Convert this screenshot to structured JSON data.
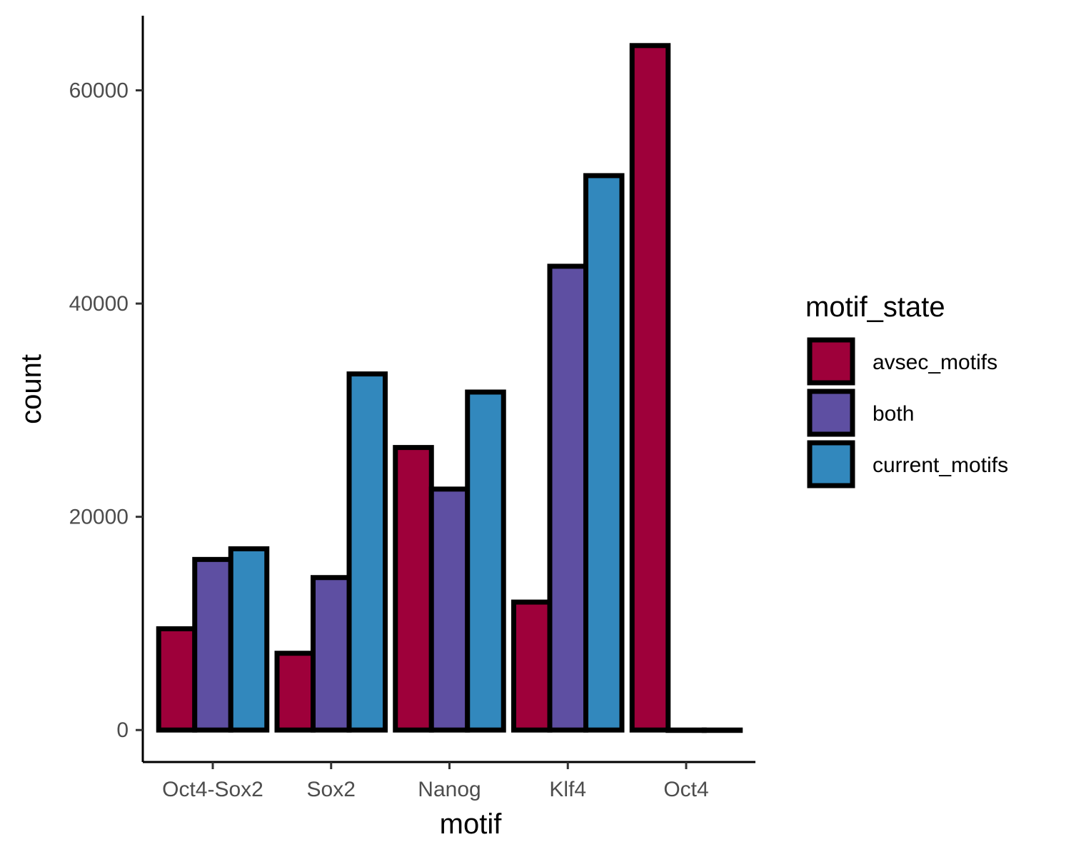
{
  "chart_data": {
    "type": "bar",
    "xlabel": "motif",
    "ylabel": "count",
    "categories": [
      "Oct4-Sox2",
      "Sox2",
      "Nanog",
      "Klf4",
      "Oct4"
    ],
    "series": [
      {
        "name": "avsec_motifs",
        "color": "#9E003A",
        "values": [
          9500,
          7200,
          26500,
          12000,
          64200
        ]
      },
      {
        "name": "both",
        "color": "#5E4FA2",
        "values": [
          16000,
          14300,
          22600,
          43500,
          0
        ]
      },
      {
        "name": "current_motifs",
        "color": "#3288BD",
        "values": [
          17000,
          33400,
          31700,
          52000,
          0
        ]
      }
    ],
    "yticks": [
      0,
      20000,
      40000,
      60000
    ],
    "ytick_labels": [
      "0",
      "20000",
      "40000",
      "60000"
    ],
    "ylim": [
      -3000,
      67000
    ],
    "grid": false,
    "legend": {
      "title": "motif_state",
      "position": "right"
    }
  }
}
